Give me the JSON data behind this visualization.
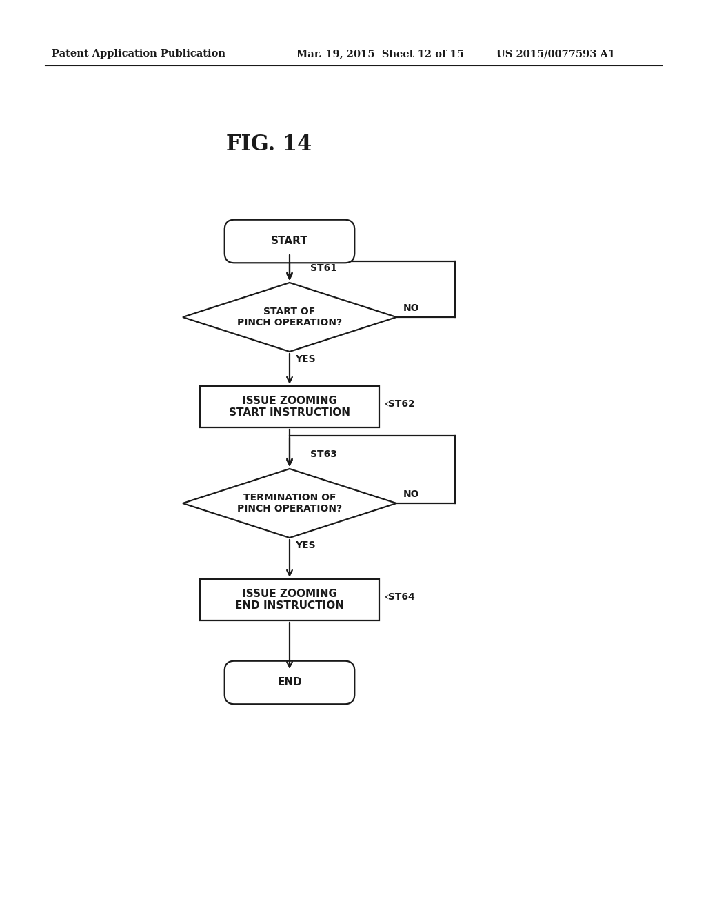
{
  "title": "FIG. 14",
  "header_left": "Patent Application Publication",
  "header_mid": "Mar. 19, 2015  Sheet 12 of 15",
  "header_right": "US 2015/0077593 A1",
  "bg_color": "#ffffff",
  "line_color": "#1a1a1a",
  "text_color": "#1a1a1a",
  "fig_title": "FIG. 14",
  "node_start_label": "START",
  "node_end_label": "END",
  "node_st61_label": "START OF\nPINCH OPERATION?",
  "node_st62_label": "ISSUE ZOOMING\nSTART INSTRUCTION",
  "node_st63_label": "TERMINATION OF\nPINCH OPERATION?",
  "node_st64_label": "ISSUE ZOOMING\nEND INSTRUCTION",
  "step_labels": [
    "ST61",
    "ST62",
    "ST63",
    "ST64"
  ],
  "yes_label": "YES",
  "no_label": "NO"
}
